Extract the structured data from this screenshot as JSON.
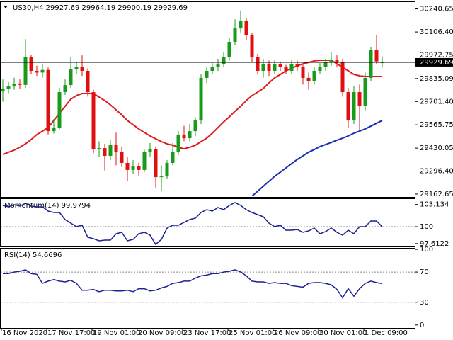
{
  "chart_data": [
    {
      "type": "candlestick",
      "title": "US30,H4  29927.69 29964.19 29900.19 29929.69",
      "categories": [
        "16 Nov 2020",
        null,
        null,
        null,
        null,
        null,
        null,
        null,
        "17 Nov 17:00",
        null,
        null,
        null,
        null,
        null,
        null,
        null,
        "19 Nov 01:00",
        null,
        null,
        null,
        null,
        null,
        null,
        null,
        "20 Nov 09:00",
        null,
        null,
        null,
        null,
        null,
        null,
        null,
        "23 Nov 17:00",
        null,
        null,
        null,
        null,
        null,
        null,
        null,
        "25 Nov 01:00",
        null,
        null,
        null,
        null,
        null,
        null,
        null,
        "26 Nov 09:00",
        null,
        null,
        null,
        null,
        null,
        null,
        null,
        "30 Nov 01:00",
        null,
        null,
        null,
        null,
        null,
        null,
        null,
        "1 Dec 09:00",
        null,
        null,
        null
      ],
      "open": [
        29760,
        29777,
        29789,
        29806,
        29798,
        29962,
        29880,
        29870,
        29885,
        29529,
        29550,
        29756,
        29797,
        29888,
        29901,
        29880,
        29756,
        29426,
        29430,
        29385,
        29447,
        29406,
        29344,
        29303,
        29323,
        29303,
        29406,
        29426,
        29261,
        29265,
        29344,
        29406,
        29509,
        29488,
        29529,
        29591,
        29839,
        29880,
        29901,
        29921,
        29962,
        30045,
        30127,
        30169,
        30086,
        29962,
        29880,
        29921,
        29880,
        29921,
        29901,
        29880,
        29921,
        29901,
        29839,
        29818,
        29880,
        29901,
        29929,
        29942,
        29929,
        29756,
        29591,
        29756,
        29674,
        29839,
        30003,
        29927.69
      ],
      "high": [
        29830,
        29815,
        29840,
        29830,
        30065,
        29975,
        29910,
        29920,
        29900,
        29600,
        29780,
        29830,
        29960,
        29930,
        29970,
        29895,
        29770,
        29470,
        29455,
        29480,
        29520,
        29440,
        29380,
        29360,
        29345,
        29420,
        29460,
        29440,
        29330,
        29360,
        29460,
        29530,
        29560,
        29570,
        29610,
        29860,
        29900,
        29925,
        29950,
        29990,
        30070,
        30180,
        30232,
        30190,
        30100,
        29980,
        29950,
        29940,
        29945,
        29935,
        29915,
        29945,
        29940,
        29920,
        29870,
        29900,
        29925,
        29950,
        29990,
        29970,
        29950,
        29780,
        29790,
        29800,
        29870,
        30020,
        30090,
        29964.19
      ],
      "low": [
        29700,
        29750,
        29770,
        29775,
        29780,
        29860,
        29850,
        29840,
        29510,
        29515,
        29540,
        29740,
        29780,
        29860,
        29850,
        29730,
        29400,
        29380,
        29300,
        29360,
        29330,
        29320,
        29240,
        29280,
        29270,
        29290,
        29380,
        29200,
        29180,
        29250,
        29330,
        29390,
        29470,
        29470,
        29500,
        29570,
        29810,
        29860,
        29880,
        29900,
        29940,
        30030,
        30100,
        30060,
        29930,
        29860,
        29840,
        29850,
        29860,
        29880,
        29860,
        29860,
        29880,
        29800,
        29770,
        29800,
        29860,
        29880,
        29910,
        29900,
        29730,
        29550,
        29570,
        29530,
        29650,
        29820,
        29920,
        29900.19
      ],
      "close": [
        29777,
        29789,
        29806,
        29798,
        29962,
        29880,
        29870,
        29885,
        29529,
        29550,
        29756,
        29797,
        29888,
        29901,
        29880,
        29756,
        29426,
        29430,
        29385,
        29447,
        29406,
        29344,
        29303,
        29323,
        29303,
        29406,
        29426,
        29261,
        29265,
        29344,
        29406,
        29509,
        29488,
        29529,
        29591,
        29839,
        29880,
        29901,
        29921,
        29962,
        30045,
        30127,
        30169,
        30086,
        29962,
        29880,
        29921,
        29880,
        29921,
        29901,
        29880,
        29921,
        29901,
        29839,
        29818,
        29880,
        29901,
        29929,
        29942,
        29929,
        29756,
        29591,
        29756,
        29674,
        29839,
        30003,
        29935,
        29929.69
      ],
      "up_color": "#1a9a1a",
      "down_color": "#e01010",
      "series": [
        {
          "color": "#e31a1c",
          "values": [
            29393,
            29406,
            29418,
            29435,
            29455,
            29480,
            29509,
            29529,
            29550,
            29591,
            29633,
            29674,
            29715,
            29736,
            29748,
            29748,
            29748,
            29727,
            29707,
            29682,
            29653,
            29624,
            29591,
            29567,
            29542,
            29521,
            29501,
            29484,
            29468,
            29455,
            29447,
            29435,
            29426,
            29435,
            29447,
            29468,
            29488,
            29517,
            29550,
            29583,
            29612,
            29645,
            29674,
            29707,
            29736,
            29756,
            29777,
            29810,
            29839,
            29859,
            29880,
            29896,
            29909,
            29921,
            29929,
            29938,
            29942,
            29942,
            29942,
            29921,
            29901,
            29880,
            29859,
            29851,
            29847,
            29847,
            29847,
            29847
          ]
        },
        {
          "color": "#1c2fb0",
          "values": [
            null,
            null,
            null,
            null,
            null,
            null,
            null,
            null,
            null,
            null,
            null,
            null,
            null,
            null,
            null,
            null,
            null,
            null,
            null,
            null,
            null,
            null,
            null,
            null,
            null,
            null,
            null,
            null,
            null,
            null,
            null,
            null,
            null,
            null,
            null,
            null,
            null,
            null,
            null,
            null,
            null,
            null,
            null,
            null,
            29150,
            29179,
            29208,
            29237,
            29266,
            29290,
            29315,
            29340,
            29364,
            29385,
            29406,
            29422,
            29439,
            29451,
            29463,
            29476,
            29488,
            29501,
            29517,
            29529,
            29542,
            29558,
            29575,
            29591
          ]
        }
      ],
      "current_price": 29929.69,
      "ylim": [
        29150,
        30280
      ],
      "yticks": [
        30240.65,
        {
          "value": 30106.4,
          "label": "30106.40"
        },
        29972.75,
        29835.09,
        {
          "value": 29701.4,
          "label": "29701.40"
        },
        29565.75,
        29430.05,
        {
          "value": 29296.4,
          "label": "29296.40"
        },
        29162.65
      ]
    },
    {
      "type": "line",
      "title": "Momentum(14) 99.9794",
      "color": "#1c2090",
      "values": [
        103.0,
        102.8,
        103.1,
        102.9,
        103.3,
        102.9,
        102.8,
        102.8,
        102.2,
        102.0,
        102.0,
        101.0,
        100.5,
        100.0,
        100.2,
        98.5,
        98.3,
        98.0,
        98.1,
        98.1,
        99.0,
        99.2,
        98.0,
        98.2,
        99.0,
        99.2,
        98.8,
        97.5,
        98.2,
        99.8,
        100.2,
        100.2,
        100.6,
        101.0,
        101.2,
        102.0,
        102.4,
        102.2,
        102.7,
        102.4,
        103.0,
        103.4,
        103.0,
        102.4,
        102.0,
        101.7,
        101.4,
        100.5,
        100.0,
        100.2,
        99.5,
        99.5,
        99.6,
        99.2,
        99.4,
        99.8,
        99.0,
        99.3,
        99.8,
        99.2,
        98.8,
        99.5,
        99.0,
        100.0,
        100.0,
        100.8,
        100.8,
        99.9794
      ],
      "ylim": [
        97.3,
        103.9
      ],
      "yticks": [
        103.134,
        100,
        97.6122
      ],
      "levels": [
        100
      ]
    },
    {
      "type": "line",
      "title": "RSI(14) 54.6696",
      "color": "#1c2090",
      "values": [
        68,
        68,
        70,
        71,
        73,
        68,
        67,
        55,
        58,
        60,
        58,
        57,
        59,
        55,
        46,
        46,
        47,
        44,
        46,
        46,
        45,
        45,
        46,
        44,
        48,
        48,
        45,
        46,
        49,
        51,
        55,
        56,
        58,
        58,
        62,
        65,
        66,
        68,
        68,
        70,
        71,
        73,
        70,
        65,
        58,
        57,
        57,
        55,
        56,
        55,
        55,
        52,
        51,
        50,
        55,
        56,
        56,
        55,
        53,
        47,
        36,
        48,
        38,
        48,
        55,
        58,
        56,
        54.6696
      ],
      "ylim": [
        -3,
        101
      ],
      "yticks": [
        100,
        70,
        30,
        0
      ],
      "levels": [
        70,
        30
      ]
    }
  ]
}
